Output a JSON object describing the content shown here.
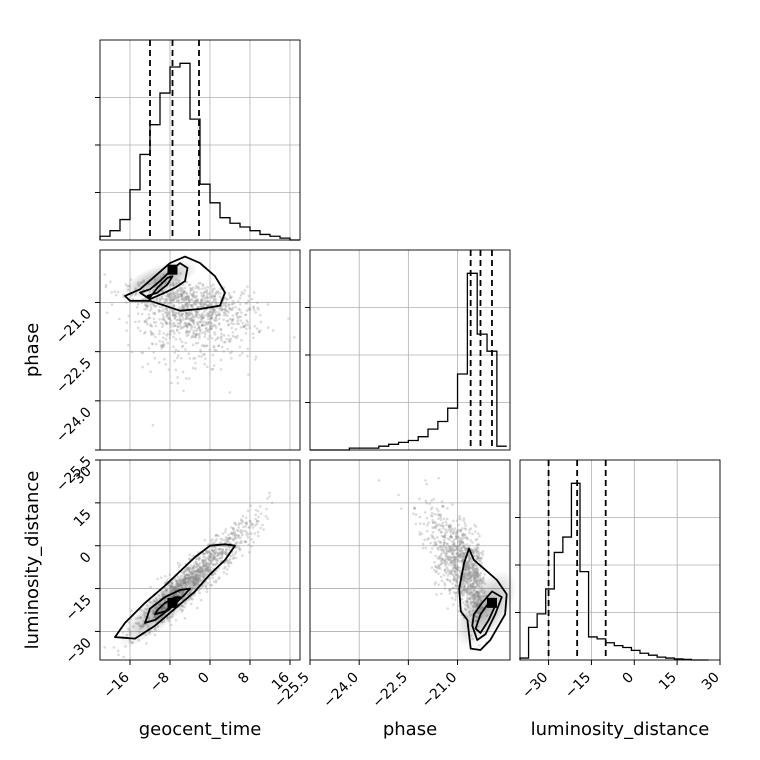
{
  "chart_data": {
    "type": "corner",
    "parameters": [
      "geocent_time",
      "phase",
      "luminosity_distance"
    ],
    "axis_labels": {
      "geocent_time": "geocent_time",
      "phase": "phase",
      "luminosity_distance": "luminosity_distance"
    },
    "ranges": {
      "geocent_time": [
        -22,
        18
      ],
      "phase": [
        -25.5,
        -19.4
      ],
      "luminosity_distance": [
        -40,
        30
      ]
    },
    "ticks": {
      "geocent_time": [
        -16,
        -8,
        0,
        8,
        16
      ],
      "phase": [
        -25.5,
        -24.0,
        -22.5,
        -21.0
      ],
      "luminosity_distance": [
        -30,
        -15,
        0,
        15,
        30
      ]
    },
    "tick_labels": {
      "geocent_time": [
        "−16",
        "−8",
        "0",
        "8",
        "16"
      ],
      "phase": [
        "−25.5",
        "−24.0",
        "−22.5",
        "−21.0"
      ],
      "luminosity_distance": [
        "−30",
        "−15",
        "0",
        "15",
        "30"
      ]
    },
    "quantiles": {
      "geocent_time": [
        -12.0,
        -7.5,
        -2.2
      ],
      "phase": [
        -20.6,
        -20.3,
        -19.95
      ],
      "luminosity_distance": [
        -30.0,
        -20.0,
        -10.0
      ]
    },
    "histograms": {
      "geocent_time": {
        "bin_edges": [
          -22,
          -20,
          -18,
          -16,
          -14,
          -12,
          -10,
          -8,
          -6,
          -4,
          -2,
          0,
          2,
          4,
          6,
          8,
          10,
          12,
          14,
          16,
          18
        ],
        "counts": [
          0.02,
          0.05,
          0.11,
          0.27,
          0.46,
          0.62,
          0.79,
          0.93,
          0.95,
          0.65,
          0.3,
          0.2,
          0.12,
          0.09,
          0.07,
          0.05,
          0.03,
          0.02,
          0.01,
          0.0
        ]
      },
      "phase": {
        "bin_edges": [
          -25.5,
          -25.2,
          -24.9,
          -24.6,
          -24.3,
          -24.0,
          -23.7,
          -23.4,
          -23.1,
          -22.8,
          -22.5,
          -22.2,
          -21.9,
          -21.6,
          -21.3,
          -21.0,
          -20.7,
          -20.4,
          -20.1,
          -19.8,
          -19.5
        ],
        "counts": [
          0.0,
          0.0,
          0.0,
          0.0,
          0.01,
          0.01,
          0.01,
          0.02,
          0.03,
          0.04,
          0.05,
          0.07,
          0.11,
          0.15,
          0.22,
          0.4,
          0.93,
          0.61,
          0.52,
          0.02
        ]
      },
      "luminosity_distance": {
        "bin_edges": [
          -40,
          -37,
          -34,
          -31,
          -28,
          -25,
          -22,
          -19,
          -16,
          -13,
          -10,
          -7,
          -4,
          -1,
          2,
          5,
          8,
          11,
          14,
          17,
          20,
          23,
          26
        ],
        "counts": [
          0.01,
          0.17,
          0.24,
          0.37,
          0.56,
          0.64,
          0.92,
          0.46,
          0.12,
          0.11,
          0.09,
          0.075,
          0.065,
          0.05,
          0.035,
          0.025,
          0.015,
          0.01,
          0.006,
          0.003,
          0.0,
          0.0
        ]
      }
    },
    "grid": true,
    "scatter": "grey sample points with black 2D density contours"
  }
}
